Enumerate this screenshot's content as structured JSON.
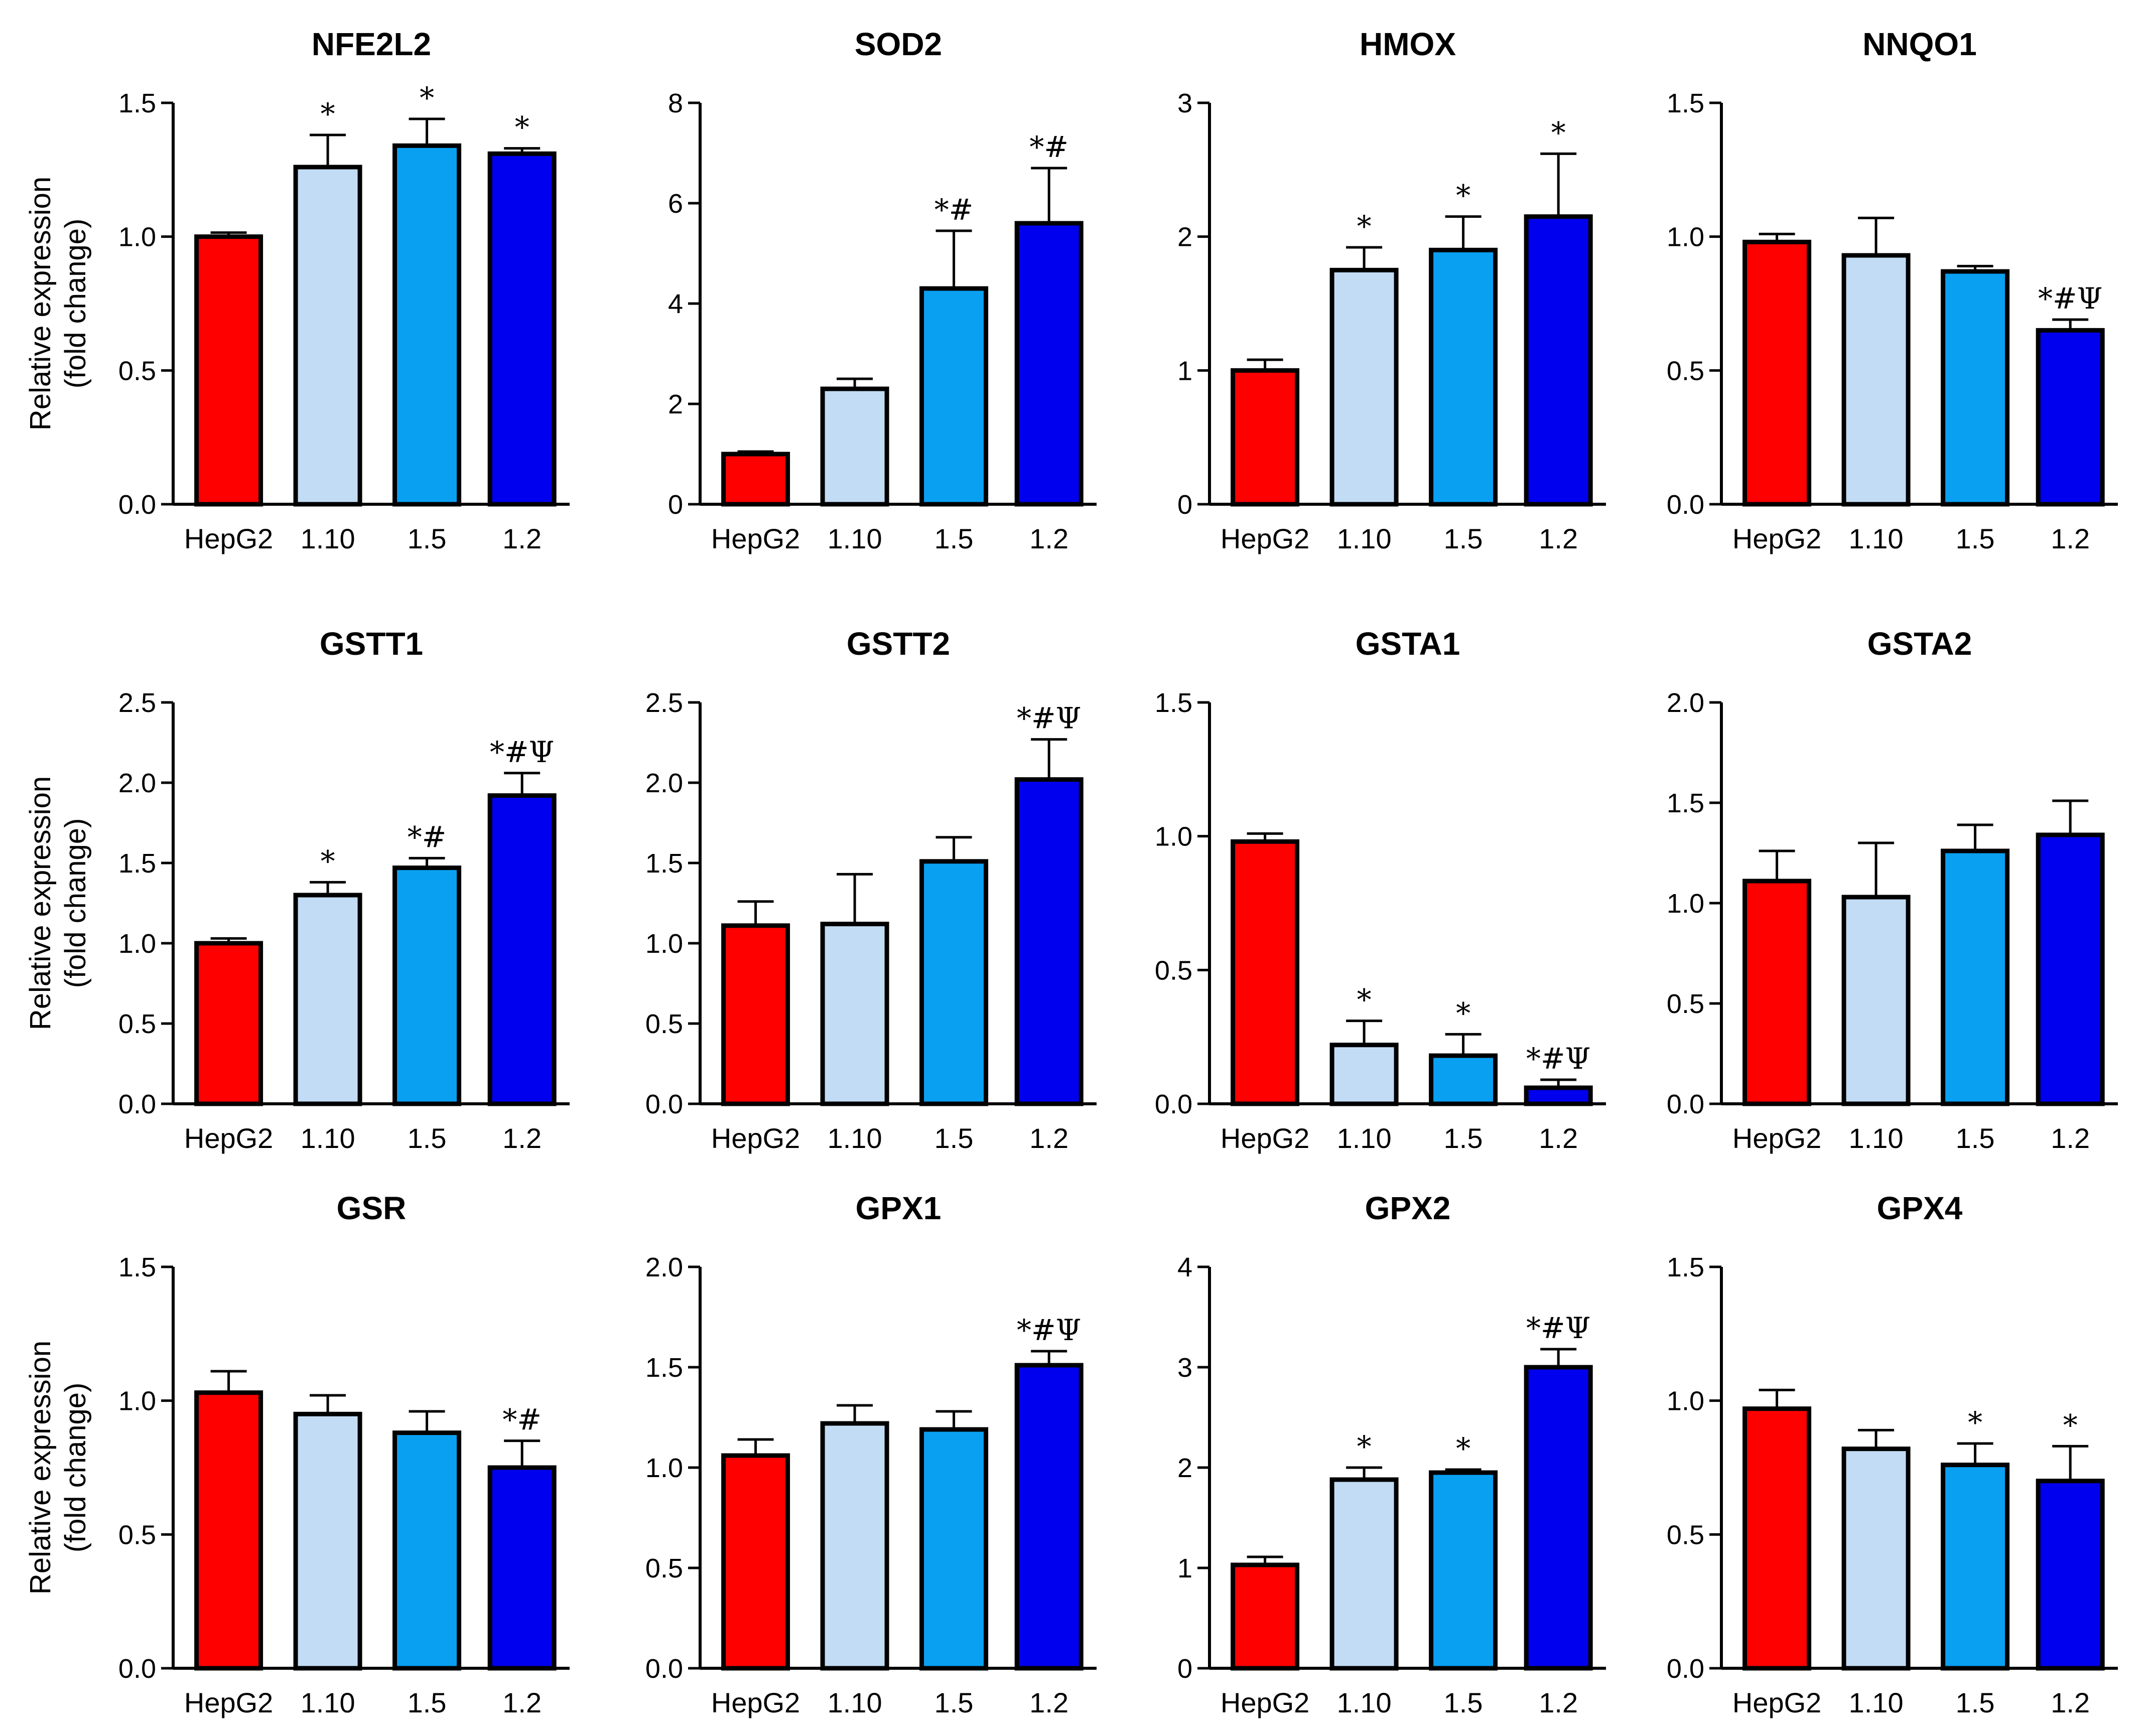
{
  "figure": {
    "ylabel_line1": "Relative expression",
    "ylabel_line2": "(fold change)",
    "series_colors": [
      "#ff0000",
      "#c2dcf5",
      "#0aa0f2",
      "#0000ee"
    ]
  },
  "chart_data": [
    {
      "type": "bar",
      "title": "NFE2L2",
      "categories": [
        "HepG2",
        "1.10",
        "1.5",
        "1.2"
      ],
      "values": [
        1.0,
        1.26,
        1.34,
        1.31
      ],
      "errors": [
        0.015,
        0.12,
        0.1,
        0.02
      ],
      "ylim": [
        0,
        1.5
      ],
      "yticks": [
        "0.0",
        "0.5",
        "1.0",
        "1.5"
      ],
      "significance": [
        "",
        "*",
        "*",
        "*"
      ],
      "ylabel": "Relative expression (fold change)"
    },
    {
      "type": "bar",
      "title": "SOD2",
      "categories": [
        "HepG2",
        "1.10",
        "1.5",
        "1.2"
      ],
      "values": [
        1.0,
        2.3,
        4.3,
        5.6
      ],
      "errors": [
        0.05,
        0.2,
        1.15,
        1.1
      ],
      "ylim": [
        0,
        8
      ],
      "yticks": [
        "0",
        "2",
        "4",
        "6",
        "8"
      ],
      "significance": [
        "",
        "",
        "*#",
        "*#"
      ]
    },
    {
      "type": "bar",
      "title": "HMOX",
      "categories": [
        "HepG2",
        "1.10",
        "1.5",
        "1.2"
      ],
      "values": [
        1.0,
        1.75,
        1.9,
        2.15
      ],
      "errors": [
        0.08,
        0.17,
        0.25,
        0.47
      ],
      "ylim": [
        0,
        3
      ],
      "yticks": [
        "0",
        "1",
        "2",
        "3"
      ],
      "significance": [
        "",
        "*",
        "*",
        "*"
      ]
    },
    {
      "type": "bar",
      "title": "NNQO1",
      "categories": [
        "HepG2",
        "1.10",
        "1.5",
        "1.2"
      ],
      "values": [
        0.98,
        0.93,
        0.87,
        0.65
      ],
      "errors": [
        0.03,
        0.14,
        0.02,
        0.04
      ],
      "ylim": [
        0,
        1.5
      ],
      "yticks": [
        "0.0",
        "0.5",
        "1.0",
        "1.5"
      ],
      "significance": [
        "",
        "",
        "",
        "*#Ψ"
      ]
    },
    {
      "type": "bar",
      "title": "GSTT1",
      "categories": [
        "HepG2",
        "1.10",
        "1.5",
        "1.2"
      ],
      "values": [
        1.0,
        1.3,
        1.47,
        1.92
      ],
      "errors": [
        0.03,
        0.08,
        0.06,
        0.14
      ],
      "ylim": [
        0,
        2.5
      ],
      "yticks": [
        "0.0",
        "0.5",
        "1.0",
        "1.5",
        "2.0",
        "2.5"
      ],
      "significance": [
        "",
        "*",
        "*#",
        "*#Ψ"
      ],
      "ylabel": "Relative expression (fold change)"
    },
    {
      "type": "bar",
      "title": "GSTT2",
      "categories": [
        "HepG2",
        "1.10",
        "1.5",
        "1.2"
      ],
      "values": [
        1.11,
        1.12,
        1.51,
        2.02
      ],
      "errors": [
        0.15,
        0.31,
        0.15,
        0.25
      ],
      "ylim": [
        0,
        2.5
      ],
      "yticks": [
        "0.0",
        "0.5",
        "1.0",
        "1.5",
        "2.0",
        "2.5"
      ],
      "significance": [
        "",
        "",
        "",
        "*#Ψ"
      ]
    },
    {
      "type": "bar",
      "title": "GSTA1",
      "categories": [
        "HepG2",
        "1.10",
        "1.5",
        "1.2"
      ],
      "values": [
        0.98,
        0.22,
        0.18,
        0.06
      ],
      "errors": [
        0.03,
        0.09,
        0.08,
        0.03
      ],
      "ylim": [
        0,
        1.5
      ],
      "yticks": [
        "0.0",
        "0.5",
        "1.0",
        "1.5"
      ],
      "significance": [
        "",
        "*",
        "*",
        "*#Ψ"
      ]
    },
    {
      "type": "bar",
      "title": "GSTA2",
      "categories": [
        "HepG2",
        "1.10",
        "1.5",
        "1.2"
      ],
      "values": [
        1.11,
        1.03,
        1.26,
        1.34
      ],
      "errors": [
        0.15,
        0.27,
        0.13,
        0.17
      ],
      "ylim": [
        0,
        2.0
      ],
      "yticks": [
        "0.0",
        "0.5",
        "1.0",
        "1.5",
        "2.0"
      ],
      "significance": [
        "",
        "",
        "",
        ""
      ]
    },
    {
      "type": "bar",
      "title": "GSR",
      "categories": [
        "HepG2",
        "1.10",
        "1.5",
        "1.2"
      ],
      "values": [
        1.03,
        0.95,
        0.88,
        0.75
      ],
      "errors": [
        0.08,
        0.07,
        0.08,
        0.1
      ],
      "ylim": [
        0,
        1.5
      ],
      "yticks": [
        "0.0",
        "0.5",
        "1.0",
        "1.5"
      ],
      "significance": [
        "",
        "",
        "",
        "*#"
      ],
      "ylabel": "Relative expression (fold change)"
    },
    {
      "type": "bar",
      "title": "GPX1",
      "categories": [
        "HepG2",
        "1.10",
        "1.5",
        "1.2"
      ],
      "values": [
        1.06,
        1.22,
        1.19,
        1.51
      ],
      "errors": [
        0.08,
        0.09,
        0.09,
        0.07
      ],
      "ylim": [
        0,
        2.0
      ],
      "yticks": [
        "0.0",
        "0.5",
        "1.0",
        "1.5",
        "2.0"
      ],
      "significance": [
        "",
        "",
        "",
        "*#Ψ"
      ]
    },
    {
      "type": "bar",
      "title": "GPX2",
      "categories": [
        "HepG2",
        "1.10",
        "1.5",
        "1.2"
      ],
      "values": [
        1.03,
        1.88,
        1.95,
        3.0
      ],
      "errors": [
        0.08,
        0.12,
        0.03,
        0.18
      ],
      "ylim": [
        0,
        4
      ],
      "yticks": [
        "0",
        "1",
        "2",
        "3",
        "4"
      ],
      "significance": [
        "",
        "*",
        "*",
        "*#Ψ"
      ]
    },
    {
      "type": "bar",
      "title": "GPX4",
      "categories": [
        "HepG2",
        "1.10",
        "1.5",
        "1.2"
      ],
      "values": [
        0.97,
        0.82,
        0.76,
        0.7
      ],
      "errors": [
        0.07,
        0.07,
        0.08,
        0.13
      ],
      "ylim": [
        0,
        1.5
      ],
      "yticks": [
        "0.0",
        "0.5",
        "1.0",
        "1.5"
      ],
      "significance": [
        "",
        "",
        "*",
        "*"
      ]
    }
  ]
}
